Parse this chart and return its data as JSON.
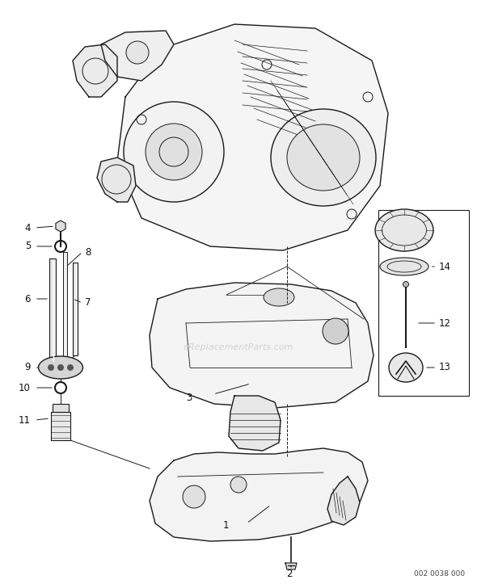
{
  "bg_color": "#ffffff",
  "line_color": "#1a1a1a",
  "watermark": "eReplacementParts.com",
  "footer_code": "002 0038 000",
  "label_fontsize": 8.5,
  "fig_width": 5.9,
  "fig_height": 7.23,
  "dpi": 100
}
